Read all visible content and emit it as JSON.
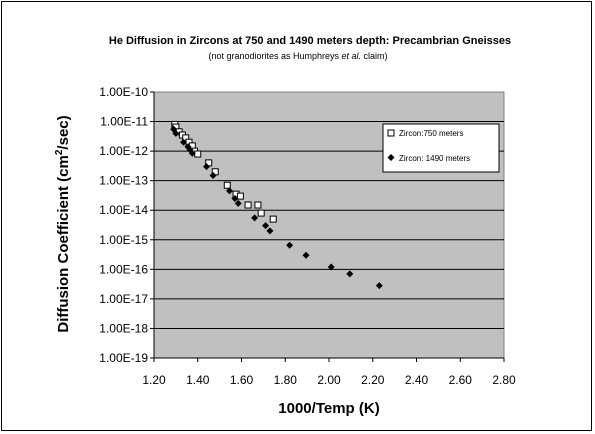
{
  "chart_data": {
    "type": "scatter",
    "title": "He Diffusion in Zircons at 750 and 1490 meters depth: Precambrian Gneisses",
    "subtitle_parts": [
      "(not granodiorites as Humphreys ",
      "et al.",
      "  claim)"
    ],
    "xlabel": "1000/Temp (K)",
    "ylabel_parts": [
      "Diffusion Coefficient (cm",
      "2",
      "/sec)"
    ],
    "xlim": [
      1.2,
      2.8
    ],
    "ylim_exponents": [
      -19,
      -10
    ],
    "y_scale": "log",
    "x_ticks": [
      "1.20",
      "1.40",
      "1.60",
      "1.80",
      "2.00",
      "2.20",
      "2.40",
      "2.60",
      "2.80"
    ],
    "y_ticks": [
      "1.00E-10",
      "1.00E-11",
      "1.00E-12",
      "1.00E-13",
      "1.00E-14",
      "1.00E-15",
      "1.00E-16",
      "1.00E-17",
      "1.00E-18",
      "1.00E-19"
    ],
    "grid": "horizontal",
    "plot_background": "#c0c0c0",
    "legend_position": "upper-right",
    "series": [
      {
        "name": "Zircon:750 meters",
        "marker": "open-square",
        "color": "#000000",
        "points": [
          [
            1.295,
            8e-12
          ],
          [
            1.3,
            6.5e-12
          ],
          [
            1.315,
            4.5e-12
          ],
          [
            1.33,
            3.5e-12
          ],
          [
            1.345,
            2.8e-12
          ],
          [
            1.36,
            2e-12
          ],
          [
            1.375,
            1.5e-12
          ],
          [
            1.385,
            1e-12
          ],
          [
            1.4,
            8e-13
          ],
          [
            1.45,
            4e-13
          ],
          [
            1.48,
            2e-13
          ],
          [
            1.535,
            7e-14
          ],
          [
            1.575,
            3.5e-14
          ],
          [
            1.595,
            3e-14
          ],
          [
            1.63,
            1.5e-14
          ],
          [
            1.675,
            1.5e-14
          ],
          [
            1.69,
            8e-15
          ],
          [
            1.745,
            5e-15
          ]
        ]
      },
      {
        "name": "Zircon: 1490 meters",
        "marker": "filled-diamond",
        "color": "#000000",
        "points": [
          [
            1.29,
            5.5e-12
          ],
          [
            1.3,
            4e-12
          ],
          [
            1.335,
            2e-12
          ],
          [
            1.355,
            1.4e-12
          ],
          [
            1.365,
            1.1e-12
          ],
          [
            1.375,
            8.5e-13
          ],
          [
            1.44,
            3e-13
          ],
          [
            1.47,
            1.5e-13
          ],
          [
            1.545,
            4.5e-14
          ],
          [
            1.57,
            2.5e-14
          ],
          [
            1.585,
            1.7e-14
          ],
          [
            1.66,
            5.5e-15
          ],
          [
            1.71,
            3e-15
          ],
          [
            1.73,
            2e-15
          ],
          [
            1.82,
            6.5e-16
          ],
          [
            1.895,
            3e-16
          ],
          [
            2.01,
            1.2e-16
          ],
          [
            2.095,
            7e-17
          ],
          [
            2.23,
            2.8e-17
          ]
        ]
      }
    ]
  }
}
